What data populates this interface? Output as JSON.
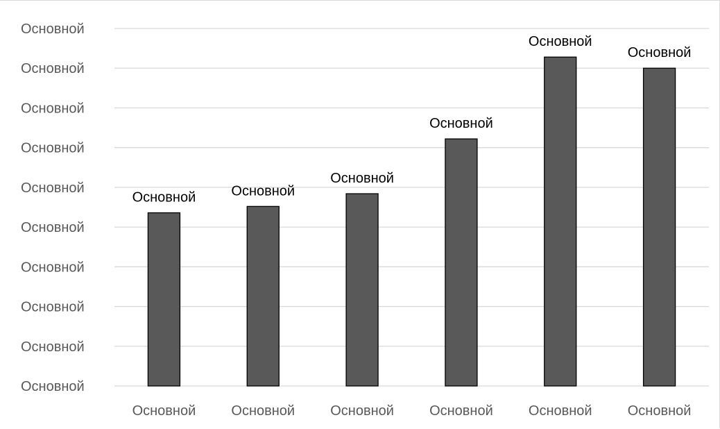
{
  "chart_data": {
    "type": "bar",
    "title": "",
    "xlabel": "",
    "ylabel": "",
    "categories": [
      "Основной",
      "Основной",
      "Основной",
      "Основной",
      "Основной",
      "Основной"
    ],
    "values": [
      4.36,
      4.52,
      4.84,
      6.22,
      8.28,
      8.0
    ],
    "data_labels": [
      "Основной",
      "Основной",
      "Основной",
      "Основной",
      "Основной",
      "Основной"
    ],
    "y_tick_labels": [
      "Основной",
      "Основной",
      "Основной",
      "Основной",
      "Основной",
      "Основной",
      "Основной",
      "Основной",
      "Основной",
      "Основной"
    ],
    "ylim": [
      0,
      9
    ],
    "grid": true,
    "legend": "none",
    "colors": {
      "bar_fill": "#595959",
      "bar_stroke": "#000000",
      "gridline": "#d9d9d9",
      "tick_text": "#595959",
      "label_text": "#000000"
    }
  }
}
